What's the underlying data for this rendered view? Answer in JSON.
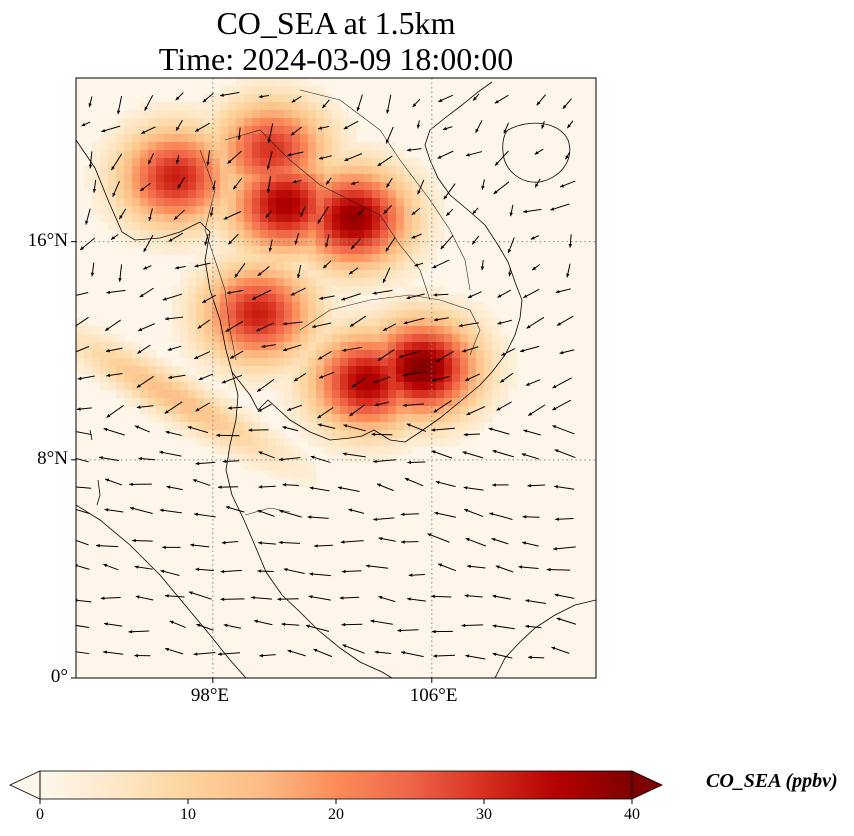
{
  "title": {
    "line1": "CO_SEA at 1.5km",
    "line2": "Time: 2024-03-09 18:00:00"
  },
  "map": {
    "variable": "CO_SEA",
    "level": "1.5km",
    "extent": {
      "lon_min": 93,
      "lon_max": 112,
      "lat_min": 0,
      "lat_max": 22
    },
    "lat_ticks": [
      {
        "value": 0,
        "label": "0°"
      },
      {
        "value": 8,
        "label": "8°N"
      },
      {
        "value": 16,
        "label": "16°N"
      }
    ],
    "lon_ticks": [
      {
        "value": 98,
        "label": "98°E"
      },
      {
        "value": 106,
        "label": "106°E"
      }
    ],
    "gridlines": "dotted",
    "features": [
      "coastlines",
      "country borders",
      "wind vectors"
    ],
    "plume_centers": [
      {
        "lon": 96.5,
        "lat": 18.5,
        "value": 32
      },
      {
        "lon": 100.5,
        "lat": 17.5,
        "value": 36
      },
      {
        "lon": 103.0,
        "lat": 17.0,
        "value": 38
      },
      {
        "lon": 100.0,
        "lat": 19.5,
        "value": 30
      },
      {
        "lon": 105.5,
        "lat": 11.5,
        "value": 40
      },
      {
        "lon": 103.5,
        "lat": 11.0,
        "value": 36
      },
      {
        "lon": 99.5,
        "lat": 13.5,
        "value": 32
      }
    ]
  },
  "colorbar": {
    "label": "CO_SEA (ppbv)",
    "min": 0,
    "max": 40,
    "ticks": [
      "0",
      "10",
      "20",
      "30",
      "40"
    ],
    "cmap": "OrRd",
    "extend": "both",
    "colors": [
      "#fff7ec",
      "#fee8c8",
      "#fdd49e",
      "#fdbb84",
      "#fc8d59",
      "#ef6548",
      "#d7301f",
      "#b30000",
      "#7f0000"
    ]
  }
}
